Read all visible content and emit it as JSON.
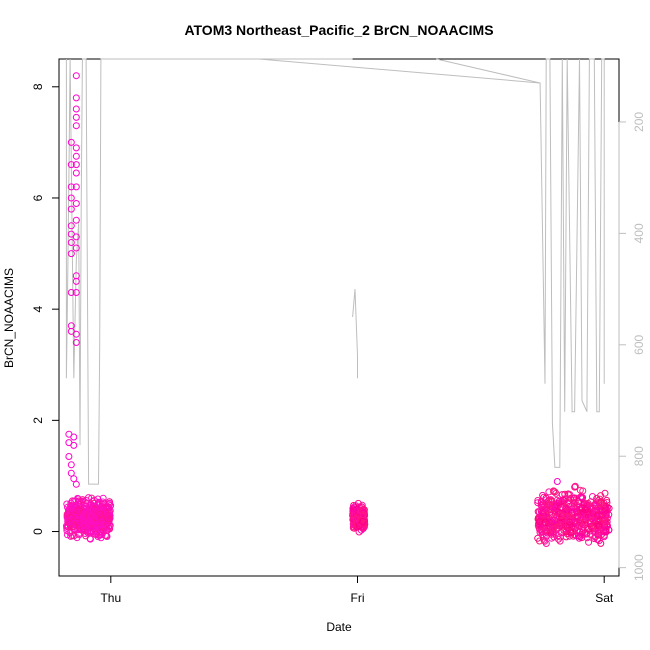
{
  "chart_data": {
    "type": "scatter",
    "title": "ATOM3 Northeast_Pacific_2 BrCN_NOAACIMS",
    "xlabel": "Date",
    "ylabel": "BrCN_NOAACIMS",
    "x_ticks": [
      {
        "label": "Thu",
        "day": 0
      },
      {
        "label": "Fri",
        "day": 1
      },
      {
        "label": "Sat",
        "day": 2
      }
    ],
    "xlim_days": [
      -0.21,
      2.06
    ],
    "ylim": [
      -0.8,
      8.5
    ],
    "y_ticks": [
      0,
      2,
      4,
      6,
      8
    ],
    "y2_ticks": [
      200,
      400,
      600,
      800,
      1000
    ],
    "y2lim": [
      87,
      1015
    ],
    "grid": false,
    "point_color": "#ff1493",
    "line_color": "#bebebe",
    "series": [
      {
        "kind": "points",
        "clusters": [
          {
            "day_start": -0.18,
            "day_end": 0.0,
            "y_low": -0.2,
            "y_high": 0.7
          },
          {
            "day_start": 0.98,
            "day_end": 1.03,
            "y_low": -0.1,
            "y_high": 0.55
          },
          {
            "day_start": 1.73,
            "day_end": 2.02,
            "y_low": -0.4,
            "y_high": 0.9
          }
        ],
        "outliers": [
          {
            "day": -0.16,
            "y": 7.0
          },
          {
            "day": -0.16,
            "y": 6.6
          },
          {
            "day": -0.16,
            "y": 6.2
          },
          {
            "day": -0.16,
            "y": 6.0
          },
          {
            "day": -0.16,
            "y": 5.8
          },
          {
            "day": -0.16,
            "y": 5.5
          },
          {
            "day": -0.16,
            "y": 5.35
          },
          {
            "day": -0.16,
            "y": 5.2
          },
          {
            "day": -0.16,
            "y": 5.0
          },
          {
            "day": -0.16,
            "y": 4.3
          },
          {
            "day": -0.16,
            "y": 3.7
          },
          {
            "day": -0.16,
            "y": 3.6
          },
          {
            "day": -0.14,
            "y": 8.2
          },
          {
            "day": -0.14,
            "y": 7.8
          },
          {
            "day": -0.14,
            "y": 7.6
          },
          {
            "day": -0.14,
            "y": 7.45
          },
          {
            "day": -0.14,
            "y": 7.3
          },
          {
            "day": -0.14,
            "y": 6.9
          },
          {
            "day": -0.14,
            "y": 6.75
          },
          {
            "day": -0.14,
            "y": 6.6
          },
          {
            "day": -0.14,
            "y": 6.45
          },
          {
            "day": -0.14,
            "y": 6.2
          },
          {
            "day": -0.14,
            "y": 5.9
          },
          {
            "day": -0.14,
            "y": 5.6
          },
          {
            "day": -0.14,
            "y": 5.3
          },
          {
            "day": -0.14,
            "y": 5.1
          },
          {
            "day": -0.14,
            "y": 4.6
          },
          {
            "day": -0.14,
            "y": 4.5
          },
          {
            "day": -0.14,
            "y": 4.3
          },
          {
            "day": -0.14,
            "y": 3.55
          },
          {
            "day": -0.14,
            "y": 3.4
          },
          {
            "day": -0.17,
            "y": 1.75
          },
          {
            "day": -0.17,
            "y": 1.6
          },
          {
            "day": -0.15,
            "y": 1.7
          },
          {
            "day": -0.15,
            "y": 1.55
          },
          {
            "day": -0.17,
            "y": 1.35
          },
          {
            "day": -0.16,
            "y": 1.2
          },
          {
            "day": -0.16,
            "y": 1.05
          },
          {
            "day": -0.15,
            "y": 0.95
          },
          {
            "day": -0.14,
            "y": 0.85
          },
          {
            "day": 1.81,
            "y": 0.9
          }
        ]
      },
      {
        "kind": "line",
        "axis": "right",
        "points": [
          [
            -0.18,
            87
          ],
          [
            -0.18,
            660
          ],
          [
            -0.175,
            500
          ],
          [
            -0.17,
            300
          ],
          [
            -0.165,
            87
          ],
          [
            -0.15,
            660
          ],
          [
            -0.14,
            450
          ],
          [
            -0.13,
            380
          ],
          [
            -0.125,
            780
          ],
          [
            -0.12,
            350
          ],
          [
            -0.115,
            87
          ],
          [
            -0.1,
            87
          ],
          [
            -0.09,
            850
          ],
          [
            -0.05,
            850
          ],
          [
            -0.045,
            600
          ],
          [
            -0.04,
            87
          ],
          [
            -0.035,
            87
          ],
          [
            -0.03,
            87
          ],
          [
            0.0,
            87
          ],
          [
            0.3,
            87
          ],
          [
            0.6,
            87
          ],
          [
            0.98,
            87
          ],
          [
            1.01,
            87
          ],
          [
            1.02,
            87
          ],
          [
            0.94,
            87
          ],
          [
            0.94,
            680
          ],
          [
            0.96,
            680
          ],
          [
            0.96,
            820
          ],
          [
            0.97,
            820
          ],
          [
            0.97,
            700
          ],
          [
            0.98,
            660
          ],
          [
            0.98,
            550
          ],
          [
            0.99,
            660
          ],
          [
            1.02,
            675
          ],
          [
            1.5,
            672
          ],
          [
            1.78,
            669
          ],
          [
            1.79,
            87
          ],
          [
            1.8,
            87
          ],
          [
            1.81,
            87
          ],
          [
            1.815,
            87
          ],
          [
            1.82,
            87
          ],
          [
            1.825,
            87
          ],
          [
            1.83,
            87
          ],
          [
            1.84,
            87
          ],
          [
            1.85,
            87
          ],
          [
            1.86,
            87
          ],
          [
            1.87,
            87
          ],
          [
            1.88,
            87
          ],
          [
            1.89,
            87
          ],
          [
            1.9,
            87
          ],
          [
            1.91,
            87
          ],
          [
            1.92,
            87
          ],
          [
            1.93,
            87
          ],
          [
            1.95,
            87
          ],
          [
            1.96,
            87
          ],
          [
            1.97,
            87
          ],
          [
            1.98,
            87
          ],
          [
            1.99,
            87
          ],
          [
            2.0,
            87
          ],
          [
            2.0,
            670
          ]
        ],
        "profile_segments": [
          [
            [
              1.01,
              87
            ],
            [
              1.01,
              87
            ]
          ],
          [
            [
              1.32,
              87
            ],
            [
              1.74,
              130
            ],
            [
              1.76,
              670
            ],
            [
              1.765,
              87
            ],
            [
              1.78,
              87
            ],
            [
              1.79,
              740
            ],
            [
              1.8,
              820
            ],
            [
              1.82,
              820
            ],
            [
              1.83,
              87
            ],
            [
              1.84,
              720
            ],
            [
              1.85,
              87
            ],
            [
              1.87,
              720
            ],
            [
              1.88,
              720
            ],
            [
              1.9,
              87
            ],
            [
              1.91,
              700
            ],
            [
              1.93,
              720
            ],
            [
              1.94,
              87
            ],
            [
              1.96,
              87
            ],
            [
              1.97,
              720
            ],
            [
              1.98,
              720
            ],
            [
              1.99,
              87
            ],
            [
              2.0,
              87
            ],
            [
              2.0,
              670
            ]
          ],
          [
            [
              0.98,
              550
            ],
            [
              0.99,
              500
            ],
            [
              1.0,
              620
            ],
            [
              1.0,
              660
            ]
          ]
        ]
      }
    ]
  }
}
